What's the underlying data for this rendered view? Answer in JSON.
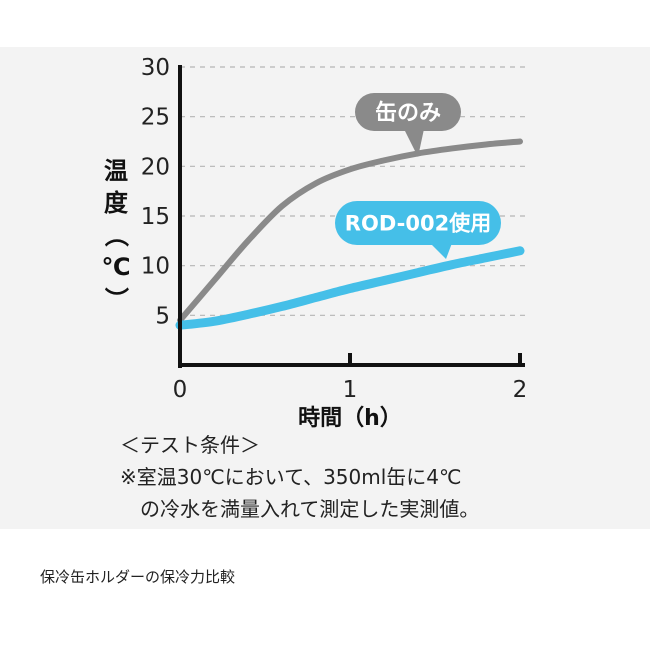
{
  "chart_data": {
    "type": "line",
    "title": "",
    "ylabel_chars": [
      "温",
      "度",
      "（",
      "℃",
      "）"
    ],
    "xlabel": "時間（h）",
    "xlim": [
      0,
      2
    ],
    "ylim": [
      0,
      30
    ],
    "xticks": [
      "0",
      "1",
      "2"
    ],
    "yticks": [
      "5",
      "10",
      "15",
      "20",
      "25",
      "30"
    ],
    "grid": "horizontal dashed",
    "series": [
      {
        "name": "缶のみ",
        "color": "#8a8a8a",
        "points": [
          [
            0,
            4.5
          ],
          [
            0.2,
            8.5
          ],
          [
            0.4,
            12.5
          ],
          [
            0.6,
            16
          ],
          [
            0.8,
            18.3
          ],
          [
            1.0,
            19.7
          ],
          [
            1.2,
            20.6
          ],
          [
            1.4,
            21.3
          ],
          [
            1.6,
            21.8
          ],
          [
            1.8,
            22.2
          ],
          [
            2.0,
            22.5
          ]
        ]
      },
      {
        "name": "ROD-002使用",
        "color": "#45bfe8",
        "points": [
          [
            0,
            4
          ],
          [
            0.2,
            4.4
          ],
          [
            0.4,
            5.1
          ],
          [
            0.6,
            5.9
          ],
          [
            0.8,
            6.8
          ],
          [
            1.0,
            7.7
          ],
          [
            1.2,
            8.5
          ],
          [
            1.4,
            9.3
          ],
          [
            1.6,
            10.1
          ],
          [
            1.8,
            10.8
          ],
          [
            2.0,
            11.5
          ]
        ]
      }
    ]
  },
  "notes": {
    "line1": "＜テスト条件＞",
    "line2": "※室温30℃において、350ml缶に4℃",
    "line3": "の冷水を満量入れて測定した実測値。"
  },
  "caption": "保冷缶ホルダーの保冷力比較"
}
